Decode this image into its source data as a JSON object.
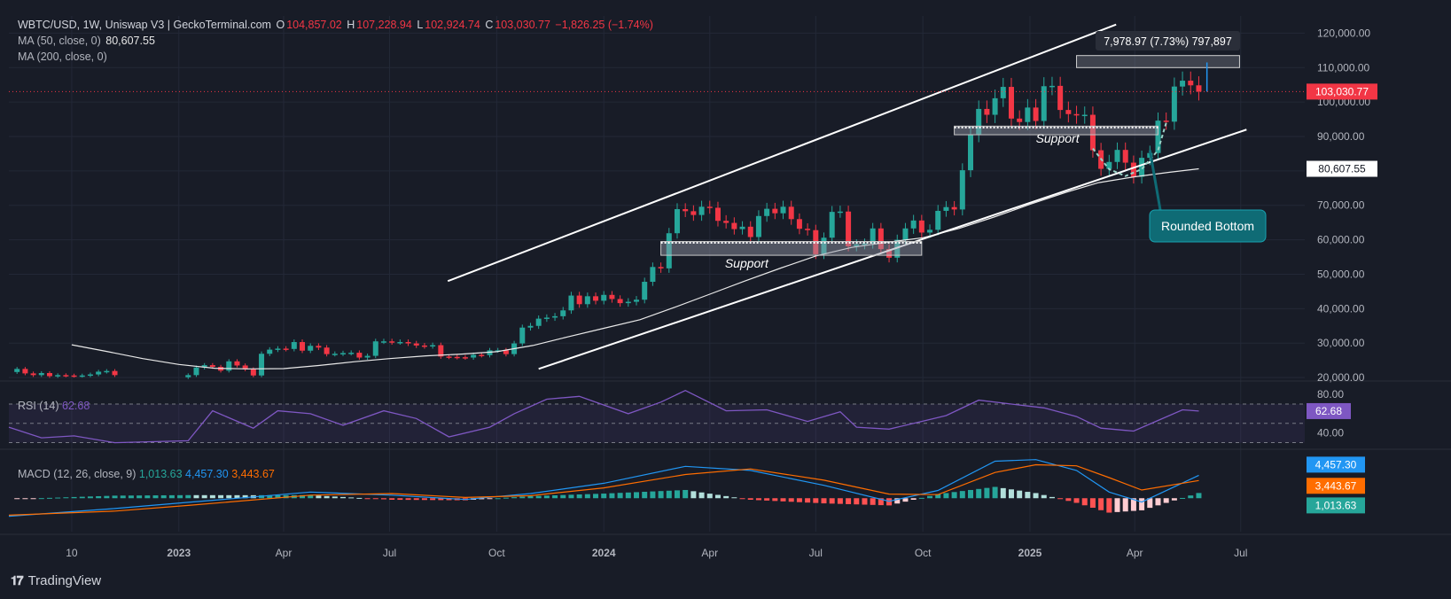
{
  "header": {
    "pair": "WBTC/USD, 1W, Uniswap V3 | GeckoTerminal.com",
    "o_label": "O",
    "o_value": "104,857.02",
    "h_label": "H",
    "h_value": "107,228.94",
    "l_label": "L",
    "l_value": "102,924.74",
    "c_label": "C",
    "c_value": "103,030.77",
    "change": "−1,826.25 (−1.74%)"
  },
  "ma50": {
    "label": "MA (50, close, 0)",
    "value": "80,607.55"
  },
  "ma200": {
    "label": "MA (200, close, 0)"
  },
  "rsi": {
    "label": "RSI (14)",
    "value": "62.68",
    "ticks": [
      "80.00",
      "40.00"
    ]
  },
  "macd": {
    "label": "MACD (12, 26, close, 9)",
    "hist": "1,013.63",
    "macd": "4,457.30",
    "signal": "3,443.67"
  },
  "branding": {
    "name": "TradingView"
  },
  "colors": {
    "bg": "#181c27",
    "up": "#26a69a",
    "down": "#f23645",
    "rsi": "#7e57c2",
    "macd": "#2196f3",
    "signal": "#ff6d00",
    "callout": "#0f6b75"
  },
  "chart_data": {
    "type": "candlestick",
    "price_axis": {
      "ticks": [
        20000,
        30000,
        40000,
        50000,
        60000,
        70000,
        80000,
        90000,
        100000,
        110000,
        120000
      ],
      "tick_labels": [
        "20,000.00",
        "30,000.00",
        "40,000.00",
        "50,000.00",
        "60,000.00",
        "70,000.00",
        "80,000.00",
        "90,000.00",
        "100,000.00",
        "110,000.00",
        "120,000.00"
      ],
      "range": [
        19500,
        125000
      ]
    },
    "time_axis": {
      "labels": [
        "10",
        "2023",
        "Apr",
        "Jul",
        "Oct",
        "2024",
        "Apr",
        "Jul",
        "Oct",
        "2025",
        "Apr",
        "Jul"
      ],
      "label_dates": [
        "2022-10-01",
        "2023-01-01",
        "2023-04-01",
        "2023-07-01",
        "2023-10-01",
        "2024-01-01",
        "2024-04-01",
        "2024-07-01",
        "2024-10-01",
        "2025-01-01",
        "2025-04-01",
        "2025-07-01"
      ],
      "start": "2022-08-08",
      "end": "2025-08-25"
    },
    "last_price": 103030.77,
    "last_price_label": "103,030.77",
    "ma50_label": "80,607.55",
    "measure_label": "7,978.97 (7.73%) 797,897",
    "support_label_1": "Support",
    "support_label_2": "Support",
    "callout_label": "Rounded Bottom",
    "legend": "none",
    "grid": true,
    "anchors": [
      [
        "2022-08-08",
        21600
      ],
      [
        "2022-08-15",
        22500
      ],
      [
        "2022-08-22",
        21200
      ],
      [
        "2022-08-29",
        20700
      ],
      [
        "2022-09-05",
        21300
      ],
      [
        "2022-09-12",
        20400
      ],
      [
        "2022-09-19",
        20700
      ],
      [
        "2022-09-26",
        20600
      ],
      [
        "2022-10-03",
        20500
      ],
      [
        "2022-10-10",
        20600
      ],
      [
        "2022-10-17",
        20900
      ],
      [
        "2022-10-24",
        21700
      ],
      [
        "2022-10-31",
        21900
      ],
      [
        "2022-11-07",
        20700
      ],
      [
        "2023-01-09",
        20700
      ],
      [
        "2023-01-16",
        22900
      ],
      [
        "2023-01-23",
        23600
      ],
      [
        "2023-01-30",
        23100
      ],
      [
        "2023-02-06",
        22000
      ],
      [
        "2023-02-13",
        24700
      ],
      [
        "2023-02-20",
        23500
      ],
      [
        "2023-02-27",
        22400
      ],
      [
        "2023-03-06",
        20600
      ],
      [
        "2023-03-13",
        26900
      ],
      [
        "2023-03-20",
        28100
      ],
      [
        "2023-03-27",
        28400
      ],
      [
        "2023-04-03",
        28300
      ],
      [
        "2023-04-10",
        30300
      ],
      [
        "2023-04-17",
        27800
      ],
      [
        "2023-04-24",
        29200
      ],
      [
        "2023-05-01",
        28700
      ],
      [
        "2023-05-08",
        26800
      ],
      [
        "2023-05-15",
        26900
      ],
      [
        "2023-05-22",
        27100
      ],
      [
        "2023-05-29",
        27200
      ],
      [
        "2023-06-05",
        25800
      ],
      [
        "2023-06-12",
        26300
      ],
      [
        "2023-06-19",
        30500
      ],
      [
        "2023-06-26",
        30500
      ],
      [
        "2023-07-03",
        30300
      ],
      [
        "2023-07-10",
        30300
      ],
      [
        "2023-07-17",
        29900
      ],
      [
        "2023-07-24",
        29300
      ],
      [
        "2023-07-31",
        29100
      ],
      [
        "2023-08-07",
        29400
      ],
      [
        "2023-08-14",
        26100
      ],
      [
        "2023-08-21",
        26000
      ],
      [
        "2023-08-28",
        25900
      ],
      [
        "2023-09-04",
        25800
      ],
      [
        "2023-09-11",
        26600
      ],
      [
        "2023-09-18",
        26500
      ],
      [
        "2023-09-25",
        27900
      ],
      [
        "2023-10-02",
        27900
      ],
      [
        "2023-10-09",
        26800
      ],
      [
        "2023-10-16",
        29900
      ],
      [
        "2023-10-23",
        34500
      ],
      [
        "2023-10-30",
        35000
      ],
      [
        "2023-11-06",
        37100
      ],
      [
        "2023-11-13",
        37400
      ],
      [
        "2023-11-20",
        37800
      ],
      [
        "2023-11-27",
        39500
      ],
      [
        "2023-12-04",
        43800
      ],
      [
        "2023-12-11",
        41300
      ],
      [
        "2023-12-18",
        43600
      ],
      [
        "2023-12-25",
        42300
      ],
      [
        "2024-01-01",
        44000
      ],
      [
        "2024-01-08",
        42800
      ],
      [
        "2024-01-15",
        41600
      ],
      [
        "2024-01-22",
        42000
      ],
      [
        "2024-01-29",
        42600
      ],
      [
        "2024-02-05",
        47800
      ],
      [
        "2024-02-12",
        52100
      ],
      [
        "2024-02-19",
        51700
      ],
      [
        "2024-02-26",
        61900
      ],
      [
        "2024-03-04",
        68900
      ],
      [
        "2024-03-11",
        68300
      ],
      [
        "2024-03-18",
        67200
      ],
      [
        "2024-03-25",
        69600
      ],
      [
        "2024-04-01",
        69300
      ],
      [
        "2024-04-08",
        65500
      ],
      [
        "2024-04-15",
        64900
      ],
      [
        "2024-04-22",
        63100
      ],
      [
        "2024-04-29",
        63800
      ],
      [
        "2024-05-06",
        60800
      ],
      [
        "2024-05-13",
        66900
      ],
      [
        "2024-05-20",
        69000
      ],
      [
        "2024-05-27",
        67700
      ],
      [
        "2024-06-03",
        69600
      ],
      [
        "2024-06-10",
        66000
      ],
      [
        "2024-06-17",
        63200
      ],
      [
        "2024-06-24",
        62800
      ],
      [
        "2024-07-01",
        55800
      ],
      [
        "2024-07-08",
        60600
      ],
      [
        "2024-07-15",
        68100
      ],
      [
        "2024-07-22",
        68200
      ],
      [
        "2024-07-29",
        58100
      ],
      [
        "2024-08-05",
        58700
      ],
      [
        "2024-08-12",
        58900
      ],
      [
        "2024-08-19",
        63300
      ],
      [
        "2024-08-26",
        57300
      ],
      [
        "2024-09-02",
        54800
      ],
      [
        "2024-09-09",
        60000
      ],
      [
        "2024-09-16",
        63300
      ],
      [
        "2024-09-23",
        65600
      ],
      [
        "2024-09-30",
        62100
      ],
      [
        "2024-10-07",
        62900
      ],
      [
        "2024-10-14",
        68400
      ],
      [
        "2024-10-21",
        69500
      ],
      [
        "2024-10-28",
        68800
      ],
      [
        "2024-11-04",
        80200
      ],
      [
        "2024-11-11",
        90600
      ],
      [
        "2024-11-18",
        98000
      ],
      [
        "2024-11-25",
        96300
      ],
      [
        "2024-12-02",
        101100
      ],
      [
        "2024-12-09",
        104400
      ],
      [
        "2024-12-16",
        95200
      ],
      [
        "2024-12-23",
        94200
      ],
      [
        "2024-12-30",
        98400
      ],
      [
        "2025-01-06",
        94500
      ],
      [
        "2025-01-13",
        104600
      ],
      [
        "2025-01-20",
        104700
      ],
      [
        "2025-01-27",
        97700
      ],
      [
        "2025-02-03",
        96500
      ],
      [
        "2025-02-10",
        96100
      ],
      [
        "2025-02-17",
        96300
      ],
      [
        "2025-02-24",
        86000
      ],
      [
        "2025-03-03",
        80600
      ],
      [
        "2025-03-10",
        82600
      ],
      [
        "2025-03-17",
        86100
      ],
      [
        "2025-03-24",
        82400
      ],
      [
        "2025-03-31",
        78300
      ],
      [
        "2025-04-07",
        83800
      ],
      [
        "2025-04-14",
        85200
      ],
      [
        "2025-04-21",
        94600
      ],
      [
        "2025-04-28",
        94300
      ],
      [
        "2025-05-05",
        104500
      ],
      [
        "2025-05-12",
        106200
      ],
      [
        "2025-05-19",
        104857
      ],
      [
        "2025-05-26",
        103030.77
      ]
    ],
    "ma50": [
      [
        "2022-10-01",
        29500
      ],
      [
        "2022-11-01",
        27500
      ],
      [
        "2022-12-01",
        25500
      ],
      [
        "2023-01-01",
        23800
      ],
      [
        "2023-02-01",
        22700
      ],
      [
        "2023-03-01",
        22500
      ],
      [
        "2023-04-01",
        22600
      ],
      [
        "2023-05-01",
        23500
      ],
      [
        "2023-06-01",
        24600
      ],
      [
        "2023-07-01",
        25500
      ],
      [
        "2023-08-01",
        26300
      ],
      [
        "2023-09-01",
        26800
      ],
      [
        "2023-10-01",
        27500
      ],
      [
        "2023-11-01",
        29300
      ],
      [
        "2023-12-01",
        31800
      ],
      [
        "2024-01-01",
        34300
      ],
      [
        "2024-02-01",
        36800
      ],
      [
        "2024-03-01",
        40300
      ],
      [
        "2024-04-01",
        44200
      ],
      [
        "2024-05-01",
        48000
      ],
      [
        "2024-06-01",
        51800
      ],
      [
        "2024-07-01",
        55300
      ],
      [
        "2024-08-01",
        57800
      ],
      [
        "2024-09-01",
        59300
      ],
      [
        "2024-10-01",
        60600
      ],
      [
        "2024-11-01",
        63300
      ],
      [
        "2024-12-01",
        66600
      ],
      [
        "2025-01-01",
        70300
      ],
      [
        "2025-02-01",
        73800
      ],
      [
        "2025-03-01",
        76600
      ],
      [
        "2025-04-01",
        78300
      ],
      [
        "2025-05-01",
        79600
      ],
      [
        "2025-05-26",
        80607.55
      ]
    ],
    "rsi_axis": {
      "range": [
        25,
        92
      ]
    },
    "rsi_series": [
      [
        "2022-08-08",
        46
      ],
      [
        "2022-09-05",
        35
      ],
      [
        "2022-10-03",
        37
      ],
      [
        "2022-11-07",
        30
      ],
      [
        "2023-01-09",
        32
      ],
      [
        "2023-01-30",
        63
      ],
      [
        "2023-03-06",
        45
      ],
      [
        "2023-03-27",
        63
      ],
      [
        "2023-04-24",
        60
      ],
      [
        "2023-05-22",
        48
      ],
      [
        "2023-06-26",
        63
      ],
      [
        "2023-07-24",
        55
      ],
      [
        "2023-08-21",
        36
      ],
      [
        "2023-09-25",
        46
      ],
      [
        "2023-10-16",
        60
      ],
      [
        "2023-11-13",
        75
      ],
      [
        "2023-12-11",
        78
      ],
      [
        "2024-01-22",
        60
      ],
      [
        "2024-02-19",
        72
      ],
      [
        "2024-03-11",
        84
      ],
      [
        "2024-04-15",
        63
      ],
      [
        "2024-05-20",
        64
      ],
      [
        "2024-06-24",
        52
      ],
      [
        "2024-07-22",
        62
      ],
      [
        "2024-08-05",
        46
      ],
      [
        "2024-09-02",
        44
      ],
      [
        "2024-09-30",
        52
      ],
      [
        "2024-10-21",
        58
      ],
      [
        "2024-11-18",
        74
      ],
      [
        "2024-12-16",
        70
      ],
      [
        "2025-01-13",
        66
      ],
      [
        "2025-02-10",
        57
      ],
      [
        "2025-03-03",
        45
      ],
      [
        "2025-03-31",
        42
      ],
      [
        "2025-04-21",
        53
      ],
      [
        "2025-05-12",
        64
      ],
      [
        "2025-05-26",
        62.68
      ]
    ],
    "macd_axis": {
      "range": [
        -6500,
        9000
      ]
    },
    "macd_series": [
      [
        "2022-08-08",
        -3500
      ],
      [
        "2022-11-07",
        -2000
      ],
      [
        "2023-01-09",
        -800
      ],
      [
        "2023-03-06",
        250
      ],
      [
        "2023-04-24",
        1200
      ],
      [
        "2023-07-03",
        600
      ],
      [
        "2023-09-04",
        -250
      ],
      [
        "2023-10-30",
        900
      ],
      [
        "2024-01-01",
        2900
      ],
      [
        "2024-03-11",
        6200
      ],
      [
        "2024-05-06",
        5400
      ],
      [
        "2024-07-08",
        2500
      ],
      [
        "2024-09-02",
        -600
      ],
      [
        "2024-10-14",
        1500
      ],
      [
        "2024-12-02",
        7200
      ],
      [
        "2025-01-06",
        7500
      ],
      [
        "2025-02-10",
        5400
      ],
      [
        "2025-03-10",
        1200
      ],
      [
        "2025-04-07",
        -750
      ],
      [
        "2025-05-26",
        4457.3
      ]
    ],
    "signal_series": [
      [
        "2022-08-08",
        -3300
      ],
      [
        "2022-11-07",
        -2500
      ],
      [
        "2023-01-09",
        -1400
      ],
      [
        "2023-04-24",
        600
      ],
      [
        "2023-07-03",
        900
      ],
      [
        "2023-09-04",
        150
      ],
      [
        "2023-10-30",
        500
      ],
      [
        "2024-01-01",
        2000
      ],
      [
        "2024-03-11",
        4600
      ],
      [
        "2024-05-06",
        5700
      ],
      [
        "2024-07-08",
        3500
      ],
      [
        "2024-09-02",
        800
      ],
      [
        "2024-10-14",
        700
      ],
      [
        "2024-12-02",
        5000
      ],
      [
        "2025-01-06",
        6500
      ],
      [
        "2025-02-10",
        6300
      ],
      [
        "2025-03-10",
        4000
      ],
      [
        "2025-04-07",
        1600
      ],
      [
        "2025-05-26",
        3443.67
      ]
    ]
  }
}
